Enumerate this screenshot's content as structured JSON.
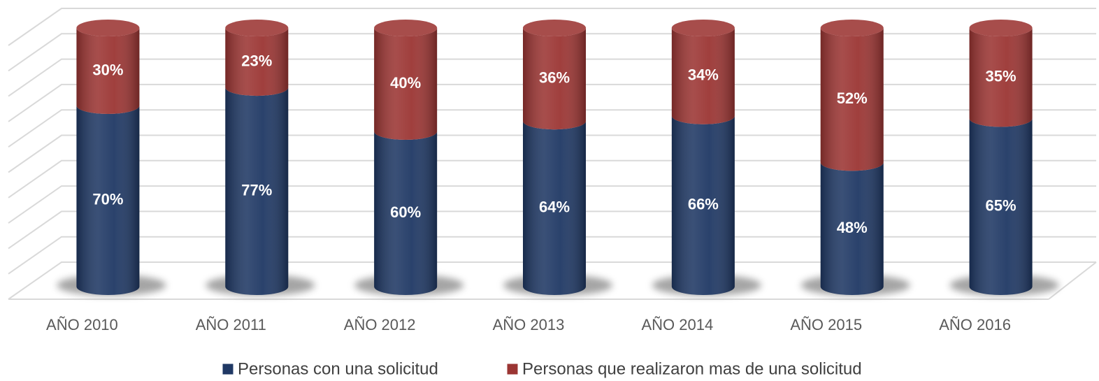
{
  "chart_data": {
    "type": "stacked_cylinder",
    "categories": [
      "AÑO 2010",
      "AÑO 2011",
      "AÑO 2012",
      "AÑO 2013",
      "AÑO 2014",
      "AÑO 2015",
      "AÑO 2016"
    ],
    "series": [
      {
        "name": "Personas con una solicitud",
        "color": "#1f3864",
        "values": [
          70,
          77,
          60,
          64,
          66,
          48,
          65
        ],
        "value_labels": [
          "70%",
          "77%",
          "60%",
          "64%",
          "66%",
          "48%",
          "65%"
        ]
      },
      {
        "name": "Personas que realizaron mas de una solicitud",
        "color": "#9b3533",
        "values": [
          30,
          23,
          40,
          36,
          34,
          52,
          35
        ],
        "value_labels": [
          "30%",
          "23%",
          "40%",
          "36%",
          "34%",
          "52%",
          "35%"
        ]
      }
    ],
    "ylim": [
      0,
      100
    ],
    "yticks": [
      0,
      10,
      20,
      30,
      40,
      50,
      60,
      70,
      80,
      90,
      100
    ],
    "grid": true
  }
}
